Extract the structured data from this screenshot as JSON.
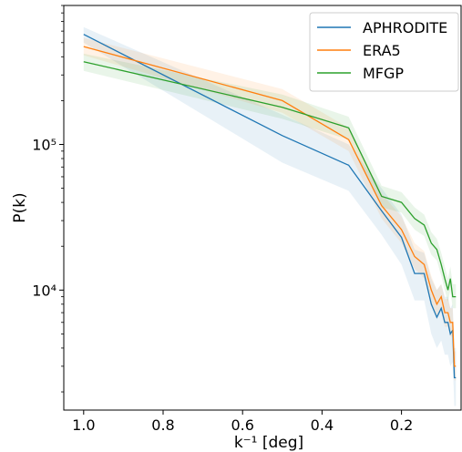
{
  "chart_data": {
    "type": "line",
    "xlabel": "k⁻¹ [deg]",
    "ylabel": "P(k)",
    "x_inverted": true,
    "x_ticks": [
      1.0,
      0.8,
      0.6,
      0.4,
      0.2
    ],
    "x_tick_labels": [
      "1.0",
      "0.8",
      "0.6",
      "0.4",
      "0.2"
    ],
    "xlim": [
      1.05,
      0.05
    ],
    "y_scale": "log",
    "ylim": [
      1500,
      900000
    ],
    "y_ticks": [
      10000,
      100000
    ],
    "y_tick_labels": [
      "10⁴",
      "10⁵"
    ],
    "grid": false,
    "legend": "top-right",
    "series": [
      {
        "name": "APHRODITE",
        "color": "#1f77b4",
        "x": [
          1.0,
          0.5,
          0.333,
          0.25,
          0.2,
          0.167,
          0.143,
          0.125,
          0.111,
          0.1,
          0.091,
          0.083,
          0.077,
          0.071,
          0.067,
          0.063
        ],
        "y": [
          570000,
          115000,
          72000,
          35000,
          23000,
          13000,
          13000,
          8000,
          6500,
          7500,
          6000,
          6000,
          5000,
          5300,
          2500,
          2500
        ],
        "upper": [
          640000,
          160000,
          100000,
          50000,
          33000,
          19000,
          18000,
          12000,
          10000,
          11000,
          9000,
          9000,
          7500,
          8000,
          4000,
          4000
        ],
        "lower": [
          500000,
          75000,
          48000,
          24000,
          15000,
          8500,
          8500,
          5000,
          4000,
          4500,
          3600,
          3600,
          3000,
          3200,
          1600,
          1600
        ]
      },
      {
        "name": "ERA5",
        "color": "#ff7f0e",
        "x": [
          1.0,
          0.5,
          0.333,
          0.25,
          0.2,
          0.167,
          0.143,
          0.125,
          0.111,
          0.1,
          0.091,
          0.083,
          0.077,
          0.071,
          0.067,
          0.063
        ],
        "y": [
          470000,
          200000,
          108000,
          38000,
          26000,
          17000,
          15000,
          10000,
          8000,
          9000,
          7000,
          7000,
          6000,
          6000,
          3000,
          3000
        ],
        "upper": [
          540000,
          240000,
          130000,
          46000,
          32000,
          21000,
          18500,
          12500,
          10000,
          11000,
          8700,
          8700,
          7500,
          7500,
          3800,
          3800
        ],
        "lower": [
          410000,
          165000,
          90000,
          31000,
          21000,
          14000,
          12000,
          8000,
          6500,
          7300,
          5600,
          5600,
          4800,
          4800,
          2400,
          2400
        ]
      },
      {
        "name": "MFGP",
        "color": "#2ca02c",
        "x": [
          1.0,
          0.5,
          0.333,
          0.25,
          0.2,
          0.167,
          0.143,
          0.125,
          0.111,
          0.1,
          0.091,
          0.083,
          0.077,
          0.071,
          0.067,
          0.063
        ],
        "y": [
          370000,
          180000,
          130000,
          44000,
          40000,
          31000,
          28000,
          21000,
          19000,
          15000,
          12000,
          10000,
          12000,
          9000,
          9000,
          9000
        ],
        "upper": [
          420000,
          220000,
          155000,
          52000,
          47000,
          37000,
          33000,
          25000,
          22500,
          18000,
          14500,
          12000,
          14500,
          11000,
          11000,
          11000
        ],
        "lower": [
          320000,
          150000,
          108000,
          37000,
          34000,
          26000,
          23500,
          17500,
          16000,
          12500,
          10000,
          8300,
          10000,
          7500,
          7500,
          7500
        ]
      }
    ]
  }
}
